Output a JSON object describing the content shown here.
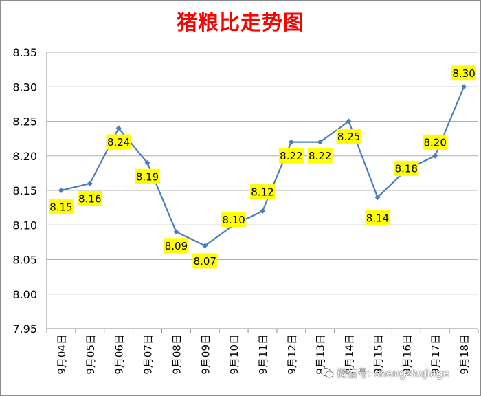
{
  "chart_data": {
    "type": "line",
    "title": "猪粮比走势图",
    "categories": [
      "9月04日",
      "9月05日",
      "9月06日",
      "9月07日",
      "9月08日",
      "9月09日",
      "9月10日",
      "9月11日",
      "9月12日",
      "9月13日",
      "9月14日",
      "9月15日",
      "9月16日",
      "9月17日",
      "9月18日"
    ],
    "series": [
      {
        "values": [
          8.15,
          8.16,
          8.24,
          8.19,
          8.09,
          8.07,
          8.1,
          8.12,
          8.22,
          8.22,
          8.25,
          8.14,
          8.18,
          8.2,
          8.3
        ]
      }
    ],
    "data_labels": [
      "8.15",
      "8.16",
      "8.24",
      "8.19",
      "8.09",
      "8.07",
      "8.10",
      "8.12",
      "8.22",
      "8.22",
      "8.25",
      "8.14",
      "8.18",
      "8.20",
      "8.30"
    ],
    "ylim": [
      7.95,
      8.35
    ],
    "yticks": [
      "7.95",
      "8.00",
      "8.05",
      "8.10",
      "8.15",
      "8.20",
      "8.25",
      "8.30",
      "8.35"
    ],
    "grid": true,
    "legend": "none",
    "colors": {
      "line": "#4a7ebb",
      "label_bg": "#ffff00",
      "title": "#ff0000",
      "grid": "#b0b0b0"
    }
  },
  "watermark": {
    "text": "微信号: shengzhujiage",
    "icon": "wechat-icon"
  }
}
